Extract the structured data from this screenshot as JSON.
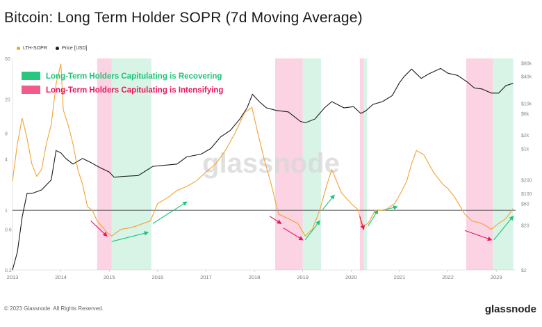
{
  "title": "Bitcoin: Long Term Holder SOPR (7d Moving Average)",
  "footer": "© 2023 Glassnode. All Rights Reserved.",
  "brand": "glassnode",
  "watermark": "glassnode",
  "chart_data": {
    "type": "line",
    "legend_placement": "top-left",
    "grid": false,
    "x_range": [
      2013.0,
      2023.4
    ],
    "x_ticks": [
      "2013",
      "2014",
      "2015",
      "2016",
      "2017",
      "2018",
      "2019",
      "2020",
      "2021",
      "2022",
      "2023"
    ],
    "y_left": {
      "scale": "log",
      "ticks": [
        "60",
        "20",
        "8",
        "4",
        "1",
        "0.6",
        "0.2"
      ],
      "range": [
        0.2,
        60
      ]
    },
    "y_right": {
      "scale": "log",
      "ticks": [
        "$80k",
        "$40k",
        "$10k",
        "$6k",
        "$2k",
        "$1k",
        "$200",
        "$100",
        "$60",
        "$20",
        "$2"
      ],
      "range": [
        2,
        100000
      ]
    },
    "reference_line": {
      "axis": "left",
      "value": 1,
      "color": "#444444"
    },
    "series": [
      {
        "name": "LTH-SOPR",
        "axis": "left",
        "color": "#f5a033",
        "x": [
          2013.0,
          2013.1,
          2013.2,
          2013.3,
          2013.4,
          2013.5,
          2013.6,
          2013.7,
          2013.8,
          2013.9,
          2014.0,
          2014.05,
          2014.15,
          2014.25,
          2014.35,
          2014.45,
          2014.55,
          2014.65,
          2014.75,
          2014.85,
          2014.95,
          2015.05,
          2015.15,
          2015.25,
          2015.4,
          2015.55,
          2015.7,
          2015.85,
          2016.0,
          2016.2,
          2016.4,
          2016.6,
          2016.8,
          2017.0,
          2017.2,
          2017.4,
          2017.6,
          2017.8,
          2017.95,
          2018.05,
          2018.2,
          2018.35,
          2018.5,
          2018.7,
          2018.9,
          2019.05,
          2019.2,
          2019.35,
          2019.5,
          2019.6,
          2019.8,
          2020.0,
          2020.15,
          2020.22,
          2020.35,
          2020.5,
          2020.7,
          2020.9,
          2021.0,
          2021.15,
          2021.25,
          2021.35,
          2021.5,
          2021.7,
          2021.9,
          2022.0,
          2022.15,
          2022.35,
          2022.5,
          2022.7,
          2022.9,
          2023.05,
          2023.2,
          2023.35
        ],
        "y": [
          2.2,
          6,
          12,
          7,
          3.5,
          2.5,
          3,
          6,
          10,
          30,
          52,
          15,
          10,
          6,
          3,
          2,
          1.1,
          1.0,
          0.75,
          0.65,
          0.55,
          0.5,
          0.55,
          0.6,
          0.62,
          0.65,
          0.7,
          0.75,
          1.2,
          1.4,
          1.7,
          1.9,
          2.2,
          2.8,
          3.5,
          5,
          8,
          14,
          16,
          9,
          4,
          2,
          0.9,
          0.8,
          0.7,
          0.5,
          0.6,
          1.0,
          2.0,
          3.0,
          1.6,
          1.2,
          1.0,
          0.65,
          0.7,
          1.0,
          1.0,
          1.2,
          1.5,
          2.2,
          3.5,
          5,
          4.5,
          2.8,
          2.0,
          1.8,
          1.4,
          0.9,
          0.75,
          0.7,
          0.6,
          0.7,
          0.8,
          1.05
        ]
      },
      {
        "name": "Price [USD]",
        "axis": "right",
        "color": "#1a1a1a",
        "x": [
          2013.0,
          2013.1,
          2013.2,
          2013.3,
          2013.4,
          2013.6,
          2013.8,
          2013.9,
          2014.0,
          2014.1,
          2014.25,
          2014.45,
          2014.6,
          2014.8,
          2015.0,
          2015.1,
          2015.3,
          2015.6,
          2015.9,
          2016.1,
          2016.4,
          2016.6,
          2016.9,
          2017.1,
          2017.3,
          2017.5,
          2017.7,
          2017.85,
          2017.96,
          2018.1,
          2018.25,
          2018.45,
          2018.7,
          2018.95,
          2019.05,
          2019.25,
          2019.45,
          2019.6,
          2019.85,
          2020.05,
          2020.2,
          2020.3,
          2020.45,
          2020.65,
          2020.85,
          2021.0,
          2021.1,
          2021.25,
          2021.45,
          2021.6,
          2021.85,
          2022.0,
          2022.2,
          2022.4,
          2022.55,
          2022.7,
          2022.9,
          2023.05,
          2023.2,
          2023.35
        ],
        "y": [
          2,
          5,
          30,
          100,
          100,
          120,
          200,
          900,
          800,
          600,
          450,
          600,
          500,
          380,
          300,
          230,
          240,
          250,
          400,
          420,
          450,
          650,
          750,
          1000,
          1800,
          2500,
          4500,
          8000,
          16000,
          11000,
          8000,
          7000,
          6500,
          4000,
          3700,
          4500,
          8000,
          11000,
          8000,
          8500,
          6000,
          6800,
          9500,
          11000,
          15000,
          29000,
          40000,
          58000,
          36000,
          45000,
          60000,
          47000,
          42000,
          30000,
          22000,
          21000,
          17000,
          17000,
          25000,
          28000
        ]
      }
    ],
    "shaded_regions": [
      {
        "type": "intensifying",
        "from": 2014.75,
        "to": 2015.05,
        "color": "#f9c4d8"
      },
      {
        "type": "recovering",
        "from": 2015.05,
        "to": 2015.87,
        "color": "#c9f0dd"
      },
      {
        "type": "intensifying",
        "from": 2018.43,
        "to": 2019.0,
        "color": "#f9c4d8"
      },
      {
        "type": "recovering",
        "from": 2019.0,
        "to": 2019.38,
        "color": "#c9f0dd"
      },
      {
        "type": "intensifying",
        "from": 2020.18,
        "to": 2020.26,
        "color": "#f9c4d8"
      },
      {
        "type": "recovering",
        "from": 2020.26,
        "to": 2020.33,
        "color": "#c9f0dd"
      },
      {
        "type": "intensifying",
        "from": 2022.38,
        "to": 2022.93,
        "color": "#f9c4d8"
      },
      {
        "type": "recovering",
        "from": 2022.93,
        "to": 2023.35,
        "color": "#c9f0dd"
      }
    ],
    "annotations": {
      "recovering": {
        "label": "Long-Term Holders Capitulating is Recovering",
        "color": "#1fc37a",
        "swatch": "#27c77f"
      },
      "intensifying": {
        "label": "Long-Term Holders Capitulating is Intensifying",
        "color": "#e8175d",
        "swatch": "#f25c8a"
      }
    },
    "arrows": [
      {
        "type": "intensifying",
        "x1": 2014.62,
        "y1": 0.75,
        "x2": 2014.95,
        "y2": 0.5
      },
      {
        "type": "recovering",
        "x1": 2015.05,
        "y1": 0.43,
        "x2": 2015.8,
        "y2": 0.55
      },
      {
        "type": "recovering",
        "x1": 2015.9,
        "y1": 0.7,
        "x2": 2016.6,
        "y2": 1.25
      },
      {
        "type": "intensifying",
        "x1": 2018.32,
        "y1": 0.85,
        "x2": 2018.55,
        "y2": 0.7
      },
      {
        "type": "intensifying",
        "x1": 2018.6,
        "y1": 0.62,
        "x2": 2019.0,
        "y2": 0.45
      },
      {
        "type": "recovering",
        "x1": 2019.05,
        "y1": 0.45,
        "x2": 2019.35,
        "y2": 0.75
      },
      {
        "type": "recovering",
        "x1": 2019.4,
        "y1": 1.0,
        "x2": 2019.65,
        "y2": 1.5
      },
      {
        "type": "intensifying",
        "x1": 2020.18,
        "y1": 0.85,
        "x2": 2020.26,
        "y2": 0.6
      },
      {
        "type": "recovering",
        "x1": 2020.35,
        "y1": 0.65,
        "x2": 2020.55,
        "y2": 1.0
      },
      {
        "type": "recovering",
        "x1": 2020.65,
        "y1": 1.0,
        "x2": 2020.95,
        "y2": 1.1
      },
      {
        "type": "intensifying",
        "x1": 2022.35,
        "y1": 0.58,
        "x2": 2022.9,
        "y2": 0.45
      },
      {
        "type": "recovering",
        "x1": 2022.95,
        "y1": 0.45,
        "x2": 2023.35,
        "y2": 0.85
      }
    ]
  }
}
